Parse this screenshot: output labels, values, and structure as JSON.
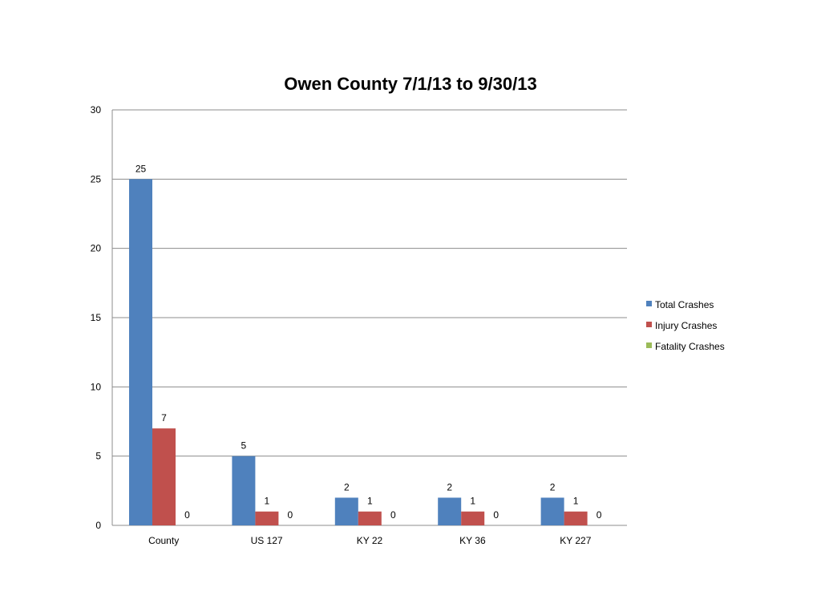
{
  "chart_data": {
    "type": "bar",
    "title": "Owen County 7/1/13 to 9/30/13",
    "categories": [
      "County",
      "US 127",
      "KY 22",
      "KY 36",
      "KY 227"
    ],
    "series": [
      {
        "name": "Total Crashes",
        "values": [
          25,
          5,
          2,
          2,
          2
        ],
        "color": "#4F81BD"
      },
      {
        "name": "Injury Crashes",
        "values": [
          7,
          1,
          1,
          1,
          1
        ],
        "color": "#C0504D"
      },
      {
        "name": "Fatality Crashes",
        "values": [
          0,
          0,
          0,
          0,
          0
        ],
        "color": "#9BBB59"
      }
    ],
    "ylim": [
      0,
      30
    ],
    "yticks": [
      0,
      5,
      10,
      15,
      20,
      25,
      30
    ],
    "grid": true,
    "legend_position": "right",
    "data_labels": true
  }
}
